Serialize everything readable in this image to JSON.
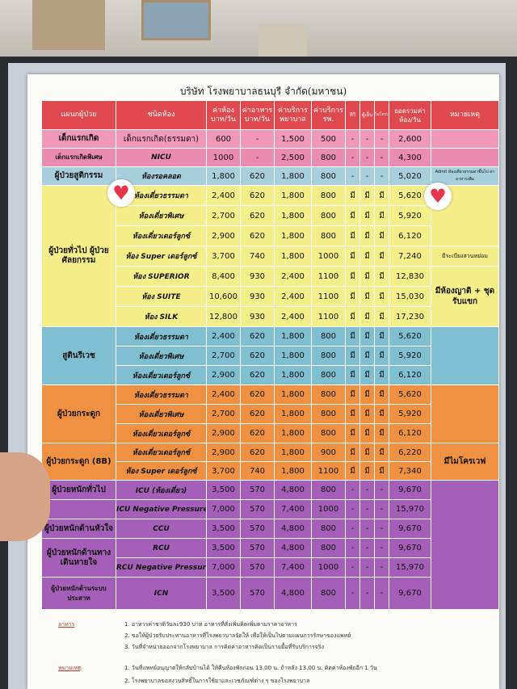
{
  "company": "บริษัท โรงพยาบาลธนบุรี จำกัด(มหาชน)",
  "headers": [
    "แผนกผู้ป่วย",
    "ชนิดห้อง",
    "ค่าห้อง บาท/วัน",
    "ค่าอาหาร บาท/วัน",
    "ค่าบริการ พยาบาล",
    "ค่าบริการ รพ.",
    "ทีวี",
    "ตู้เย็น",
    "ไมโครเวฟ",
    "ยอดรวมค่าห้อง/วัน",
    "หมายเหตุ"
  ],
  "rows": [
    {
      "dept": "เด็กแรกเกิด",
      "room": "เด็กแรกเกิด(ธรรมดา)",
      "room_fee": "600",
      "food": "-",
      "nurse": "1,500",
      "service": "500",
      "tv": "-",
      "fridge": "-",
      "micro": "-",
      "total": "2,600",
      "remark": ""
    },
    {
      "dept": "เด็กแรกเกิดพิเศษ",
      "room": "NICU",
      "room_fee": "1000",
      "food": "-",
      "nurse": "2,500",
      "service": "800",
      "tv": "-",
      "fridge": "-",
      "micro": "-",
      "total": "4,300",
      "remark": ""
    },
    {
      "dept": "ผู้ป่วยสูติกรรม",
      "room": "ห้องรอคลอด",
      "room_fee": "1,800",
      "food": "620",
      "nurse": "1,800",
      "service": "800",
      "tv": "-",
      "fridge": "-",
      "micro": "-",
      "total": "5,020",
      "remark": "Admit ห้องเดี่ยวธรรมดาขึ้นไป ค่าอาหารเพิ่ม"
    },
    {
      "dept": "ผู้ป่วยทั่วไป ผู้ป่วยศัลยกรรม",
      "room": "ห้องเดี่ยวธรรมดา",
      "room_fee": "2,400",
      "food": "620",
      "nurse": "1,800",
      "service": "800",
      "tv": "มี",
      "fridge": "มี",
      "micro": "มี",
      "total": "5,620",
      "remark": ""
    },
    {
      "dept": "",
      "room": "ห้องเดี่ยวพิเศษ",
      "room_fee": "2,700",
      "food": "620",
      "nurse": "1,800",
      "service": "800",
      "tv": "มี",
      "fridge": "มี",
      "micro": "มี",
      "total": "5,920",
      "remark": ""
    },
    {
      "dept": "",
      "room": "ห้องเดี่ยวเดอร์ลูกซ์",
      "room_fee": "2,900",
      "food": "620",
      "nurse": "1,800",
      "service": "800",
      "tv": "มี",
      "fridge": "มี",
      "micro": "มี",
      "total": "6,120",
      "remark": ""
    },
    {
      "dept": "",
      "room": "ห้อง Super เดอร์ลูกซ์",
      "room_fee": "3,700",
      "food": "740",
      "nurse": "1,800",
      "service": "1000",
      "tv": "มี",
      "fridge": "มี",
      "micro": "มี",
      "total": "7,240",
      "remark": "มีระเบียงสวนหย่อม"
    },
    {
      "dept": "",
      "room": "ห้อง SUPERIOR",
      "room_fee": "8,400",
      "food": "930",
      "nurse": "2,400",
      "service": "1100",
      "tv": "มี",
      "fridge": "มี",
      "micro": "มี",
      "total": "12,830",
      "remark": "มีห้องญาติ + ชุดรับแขก"
    },
    {
      "dept": "",
      "room": "ห้อง SUITE",
      "room_fee": "10,600",
      "food": "930",
      "nurse": "2,400",
      "service": "1100",
      "tv": "มี",
      "fridge": "มี",
      "micro": "มี",
      "total": "15,030",
      "remark": ""
    },
    {
      "dept": "",
      "room": "ห้อง SILK",
      "room_fee": "12,800",
      "food": "930",
      "nurse": "2,400",
      "service": "1100",
      "tv": "มี",
      "fridge": "มี",
      "micro": "มี",
      "total": "17,230",
      "remark": ""
    },
    {
      "dept": "สูตินรีเวช",
      "room": "ห้องเดี่ยวธรรมดา",
      "room_fee": "2,400",
      "food": "620",
      "nurse": "1,800",
      "service": "800",
      "tv": "มี",
      "fridge": "มี",
      "micro": "มี",
      "total": "5,620",
      "remark": ""
    },
    {
      "dept": "",
      "room": "ห้องเดี่ยวพิเศษ",
      "room_fee": "2,700",
      "food": "620",
      "nurse": "1,800",
      "service": "800",
      "tv": "มี",
      "fridge": "มี",
      "micro": "มี",
      "total": "5,920",
      "remark": ""
    },
    {
      "dept": "",
      "room": "ห้องเดี่ยวเดอร์ลูกซ์",
      "room_fee": "2,900",
      "food": "620",
      "nurse": "1,800",
      "service": "800",
      "tv": "มี",
      "fridge": "มี",
      "micro": "มี",
      "total": "6,120",
      "remark": ""
    },
    {
      "dept": "ผู้ป่วยกระดูก",
      "room": "ห้องเดี่ยวธรรมดา",
      "room_fee": "2,400",
      "food": "620",
      "nurse": "1,800",
      "service": "800",
      "tv": "มี",
      "fridge": "มี",
      "micro": "มี",
      "total": "5,620",
      "remark": ""
    },
    {
      "dept": "",
      "room": "ห้องเดี่ยวพิเศษ",
      "room_fee": "2,700",
      "food": "620",
      "nurse": "1,800",
      "service": "800",
      "tv": "มี",
      "fridge": "มี",
      "micro": "มี",
      "total": "5,920",
      "remark": ""
    },
    {
      "dept": "",
      "room": "ห้องเดี่ยวเดอร์ลูกซ์",
      "room_fee": "2,900",
      "food": "620",
      "nurse": "1,800",
      "service": "800",
      "tv": "มี",
      "fridge": "มี",
      "micro": "มี",
      "total": "6,120",
      "remark": ""
    },
    {
      "dept": "ผู้ป่วยกระดูก (8B)",
      "room": "ห้องเดี่ยวเดอร์ลูกซ์",
      "room_fee": "2,900",
      "food": "620",
      "nurse": "1,800",
      "service": "900",
      "tv": "มี",
      "fridge": "มี",
      "micro": "มี",
      "total": "6,220",
      "remark": "มีไมโครเวฟ"
    },
    {
      "dept": "",
      "room": "ห้อง Super เดอร์ลูกซ์",
      "room_fee": "3,700",
      "food": "740",
      "nurse": "1,800",
      "service": "1100",
      "tv": "มี",
      "fridge": "มี",
      "micro": "มี",
      "total": "7,340",
      "remark": ""
    },
    {
      "dept": "ผู้ป่วยหนักทั่วไป",
      "room": "ICU (ห้องเดี่ยว)",
      "room_fee": "3,500",
      "food": "570",
      "nurse": "4,800",
      "service": "800",
      "tv": "-",
      "fridge": "-",
      "micro": "-",
      "total": "9,670",
      "remark": ""
    },
    {
      "dept": "",
      "room": "ICU Negative Pressure",
      "room_fee": "7,000",
      "food": "570",
      "nurse": "7,400",
      "service": "1000",
      "tv": "-",
      "fridge": "-",
      "micro": "-",
      "total": "15,970",
      "remark": ""
    },
    {
      "dept": "ผู้ป่วยหนักด้านหัวใจ",
      "room": "CCU",
      "room_fee": "3,500",
      "food": "570",
      "nurse": "4,800",
      "service": "800",
      "tv": "-",
      "fridge": "-",
      "micro": "-",
      "total": "9,670",
      "remark": ""
    },
    {
      "dept": "ผู้ป่วยหนักด้านทางเดินหายใจ",
      "room": "RCU",
      "room_fee": "3,500",
      "food": "570",
      "nurse": "4,800",
      "service": "800",
      "tv": "-",
      "fridge": "-",
      "micro": "-",
      "total": "9,670",
      "remark": ""
    },
    {
      "dept": "",
      "room": "RCU Negative Pressure",
      "room_fee": "7,000",
      "food": "570",
      "nurse": "7,400",
      "service": "1000",
      "tv": "-",
      "fridge": "-",
      "micro": "-",
      "total": "15,970",
      "remark": ""
    },
    {
      "dept": "ผู้ป่วยหนักด้านระบบประสาท",
      "room": "ICN",
      "room_fee": "3,500",
      "food": "570",
      "nurse": "4,800",
      "service": "800",
      "tv": "-",
      "fridge": "-",
      "micro": "-",
      "total": "9,670",
      "remark": ""
    }
  ],
  "footer": {
    "food_label": "อาหาร",
    "food_notes": [
      "1. อาหารค่าชาติวันละ930 บาท อาหารที่สั่งเพิ่มคิดเพิ่มตามราคาอาหาร",
      "2. ขอให้ผู้ป่วยรับประทานอาหารที่โรงพยาบาลจัดให้ เพื่อให้เป็นไปตามแผนการรักษาของแพทย์",
      "3. วันที่จำหน่ายออกจากโรงพยาบาล การคิดค่าอาหารคิดเป็นรายมื้อที่รับบริการจริง"
    ],
    "remark_label": "หมายเหตุ",
    "remark_notes": [
      "1. วันที่แพทย์อนุญาตให้กลับบ้านได้ ให้คืนห้องพักก่อน 13.00 น. ถ้าหลัง 13.00 น. คิดค่าห้องพักอีก 1 วัน",
      "2. โรงพยาบาลขอสงวนสิทธิ์ในการใช้ยาและเวชภัณฑ์ต่าง ๆ ของโรงพยาบาล"
    ]
  }
}
